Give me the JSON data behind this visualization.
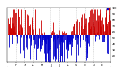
{
  "num_days": 365,
  "ylim": [
    10,
    100
  ],
  "ytick_values": [
    20,
    30,
    40,
    50,
    60,
    70,
    80,
    90,
    100
  ],
  "background_color": "#ffffff",
  "bar_color_above": "#cc0000",
  "bar_color_below": "#0000cc",
  "avg_value": 55,
  "amplitude": 20,
  "noise_scale": 22,
  "seed": 7,
  "num_gridlines": 12,
  "legend_labels": [
    "",
    ""
  ],
  "legend_colors": [
    "#0000cc",
    "#cc0000"
  ]
}
